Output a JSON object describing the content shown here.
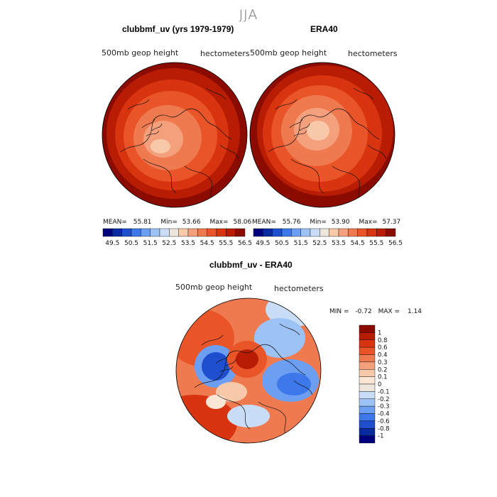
{
  "figure_title": "JJA",
  "panels": {
    "model": {
      "title": "clubbmf_uv (yrs 1979-1979)",
      "field": "500mb geop height",
      "units": "hectometers",
      "stats": {
        "mean_label": "MEAN=",
        "mean": "55.81",
        "min_label": "Min=",
        "min": "53.66",
        "max_label": "Max=",
        "max": "58.06"
      }
    },
    "obs": {
      "title": "ERA40",
      "field": "500mb geop height",
      "units": "hectometers",
      "stats": {
        "mean_label": "MEAN=",
        "mean": "55.76",
        "min_label": "Min=",
        "min": "53.90",
        "max_label": "Max=",
        "max": "57.37"
      }
    },
    "diff": {
      "title": "clubbmf_uv - ERA40",
      "field": "500mb geop height",
      "units": "hectometers",
      "stats": {
        "min_label": "MIN =",
        "min": "-0.72",
        "max_label": "MAX =",
        "max": "1.14"
      }
    }
  },
  "colorbar_top": {
    "labels": [
      "49.5",
      "50.5",
      "51.5",
      "52.5",
      "53.5",
      "54.5",
      "55.5",
      "56.5"
    ],
    "colors": [
      "#00007f",
      "#0a2aa0",
      "#1f4fcf",
      "#3d78ea",
      "#6c9ff2",
      "#9dc3f6",
      "#c9ddf7",
      "#ece6dc",
      "#f8c9a9",
      "#f5a07c",
      "#f07a4f",
      "#e95428",
      "#d83410",
      "#b81d04",
      "#8c0b00"
    ]
  },
  "colorbar_diff": {
    "labels": [
      "1",
      "0.8",
      "0.6",
      "0.4",
      "0.3",
      "0.2",
      "0.1",
      "0",
      "-0.1",
      "-0.2",
      "-0.3",
      "-0.4",
      "-0.6",
      "-0.8",
      "-1"
    ],
    "colors": [
      "#8c0b00",
      "#b81d04",
      "#d83410",
      "#e95428",
      "#f07a4f",
      "#f5a07c",
      "#f8c9a9",
      "#fbe6d6",
      "#ece6dc",
      "#c9ddf7",
      "#9dc3f6",
      "#6c9ff2",
      "#3d78ea",
      "#1f4fcf",
      "#0a2aa0",
      "#00007f"
    ]
  }
}
